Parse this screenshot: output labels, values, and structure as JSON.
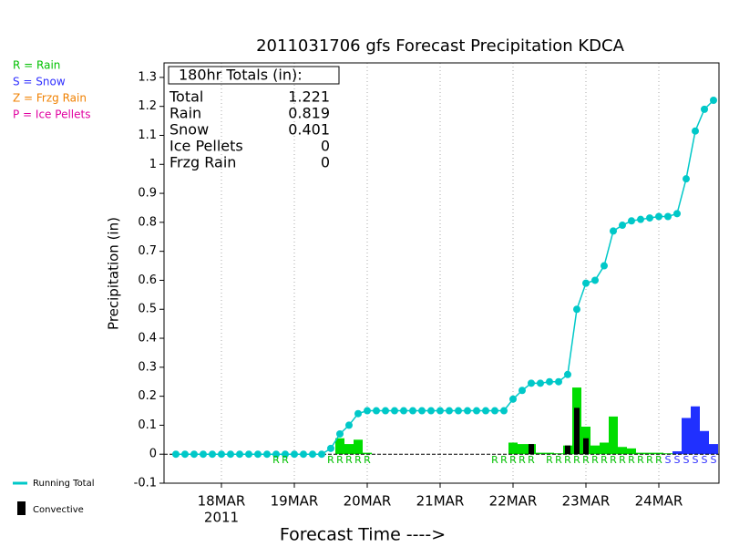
{
  "chart_data": {
    "type": "line",
    "title": "2011031706 gfs Forecast Precipitation KDCA",
    "y_label": "Precipitation (in)",
    "x_label": "Forecast Time ---->",
    "year_label": "2011",
    "xlim": [
      -0.9,
      181.8
    ],
    "ylim": [
      -0.1,
      1.35
    ],
    "xticks": [
      {
        "value": 18,
        "label": "18MAR"
      },
      {
        "value": 42,
        "label": "19MAR"
      },
      {
        "value": 66,
        "label": "20MAR"
      },
      {
        "value": 90,
        "label": "21MAR"
      },
      {
        "value": 114,
        "label": "22MAR"
      },
      {
        "value": 138,
        "label": "23MAR"
      },
      {
        "value": 162,
        "label": "24MAR"
      }
    ],
    "yticks": [
      {
        "value": -0.1,
        "label": "-0.1"
      },
      0,
      0.1,
      0.2,
      0.3,
      0.4,
      0.5,
      0.6,
      0.7,
      0.8,
      0.9,
      1,
      1.1,
      1.2,
      1.3
    ],
    "grid": true,
    "type_legend": [
      {
        "label": "R = Rain",
        "color": "#00c000"
      },
      {
        "label": "S = Snow",
        "color": "#3030ff"
      },
      {
        "label": "Z = Frzg Rain",
        "color": "#f08000"
      },
      {
        "label": "P = Ice Pellets",
        "color": "#e000a0"
      }
    ],
    "totals": {
      "header": "180hr Totals (in):",
      "rows": [
        {
          "label": "Total",
          "value": 1.221
        },
        {
          "label": "Rain",
          "value": 0.819
        },
        {
          "label": "Snow",
          "value": 0.401
        },
        {
          "label": "Ice Pellets",
          "value": 0
        },
        {
          "label": "Frzg Rain",
          "value": 0
        }
      ]
    },
    "series": [
      {
        "name": "Running Total",
        "color": "#00c8c8",
        "x": [
          3,
          6,
          9,
          12,
          15,
          18,
          21,
          24,
          27,
          30,
          33,
          36,
          39,
          42,
          45,
          48,
          51,
          54,
          57,
          60,
          63,
          66,
          69,
          72,
          75,
          78,
          81,
          84,
          87,
          90,
          93,
          96,
          99,
          102,
          105,
          108,
          111,
          114,
          117,
          120,
          123,
          126,
          129,
          132,
          135,
          138,
          141,
          144,
          147,
          150,
          153,
          156,
          159,
          162,
          165,
          168,
          171,
          174,
          177,
          180
        ],
        "values": [
          0,
          0,
          0,
          0,
          0,
          0,
          0,
          0,
          0,
          0,
          0,
          0,
          0,
          0,
          0,
          0,
          0,
          0.02,
          0.07,
          0.1,
          0.14,
          0.15,
          0.15,
          0.15,
          0.15,
          0.15,
          0.15,
          0.15,
          0.15,
          0.15,
          0.15,
          0.15,
          0.15,
          0.15,
          0.15,
          0.15,
          0.15,
          0.19,
          0.22,
          0.245,
          0.245,
          0.25,
          0.25,
          0.275,
          0.5,
          0.59,
          0.6,
          0.65,
          0.77,
          0.79,
          0.805,
          0.81,
          0.815,
          0.82,
          0.82,
          0.83,
          0.95,
          1.115,
          1.19,
          1.221
        ]
      },
      {
        "name": "Rain",
        "color": "#00dd00",
        "x": [
          57,
          60,
          63,
          66,
          114,
          117,
          120,
          123,
          126,
          129,
          132,
          135,
          138,
          141,
          144,
          147,
          150,
          153,
          156,
          159,
          162,
          165
        ],
        "values": [
          0.055,
          0.035,
          0.05,
          0.005,
          0.04,
          0.035,
          0.035,
          0.005,
          0.005,
          0.003,
          0.03,
          0.23,
          0.095,
          0.03,
          0.04,
          0.13,
          0.025,
          0.02,
          0.005,
          0.005,
          0.005,
          0.003
        ]
      },
      {
        "name": "Snow",
        "color": "#2030ff",
        "x": [
          168,
          171,
          174,
          177,
          180
        ],
        "values": [
          0.01,
          0.125,
          0.165,
          0.08,
          0.035
        ]
      },
      {
        "name": "Convective",
        "color": "#000000",
        "x": [
          120,
          132,
          135,
          138
        ],
        "values": [
          0.035,
          0.03,
          0.16,
          0.055
        ]
      }
    ],
    "type_letters": {
      "x": [
        36,
        39,
        54,
        57,
        60,
        63,
        66,
        108,
        111,
        114,
        117,
        120,
        126,
        129,
        132,
        135,
        138,
        141,
        144,
        147,
        150,
        153,
        156,
        159,
        162,
        165,
        168,
        171,
        174,
        177,
        180
      ],
      "labels": [
        "R",
        "R",
        "R",
        "R",
        "R",
        "R",
        "R",
        "R",
        "R",
        "R",
        "R",
        "R",
        "R",
        "R",
        "R",
        "R",
        "R",
        "R",
        "R",
        "R",
        "R",
        "R",
        "R",
        "R",
        "R",
        "S",
        "S",
        "S",
        "S",
        "S",
        "S"
      ]
    }
  }
}
